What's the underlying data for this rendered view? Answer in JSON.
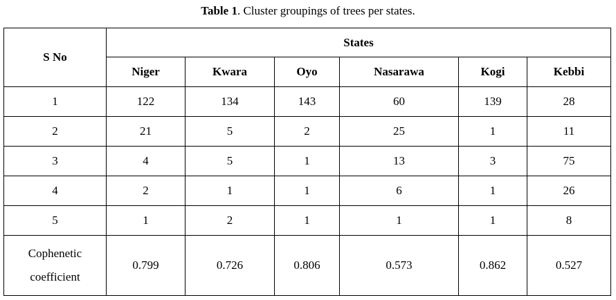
{
  "caption": {
    "label": "Table 1",
    "text": ". Cluster groupings of trees per states."
  },
  "table": {
    "sno_header": "S No",
    "group_header": "States",
    "columns": [
      "Niger",
      "Kwara",
      "Oyo",
      "Nasarawa",
      "Kogi",
      "Kebbi"
    ],
    "rows": [
      {
        "label": "1",
        "values": [
          "122",
          "134",
          "143",
          "60",
          "139",
          "28"
        ]
      },
      {
        "label": "2",
        "values": [
          "21",
          "5",
          "2",
          "25",
          "1",
          "11"
        ]
      },
      {
        "label": "3",
        "values": [
          "4",
          "5",
          "1",
          "13",
          "3",
          "75"
        ]
      },
      {
        "label": "4",
        "values": [
          "2",
          "1",
          "1",
          "6",
          "1",
          "26"
        ]
      },
      {
        "label": "5",
        "values": [
          "1",
          "2",
          "1",
          "1",
          "1",
          "8"
        ]
      },
      {
        "label_lines": [
          "Cophenetic",
          "coefficient"
        ],
        "values": [
          "0.799",
          "0.726",
          "0.806",
          "0.573",
          "0.862",
          "0.527"
        ]
      }
    ]
  }
}
